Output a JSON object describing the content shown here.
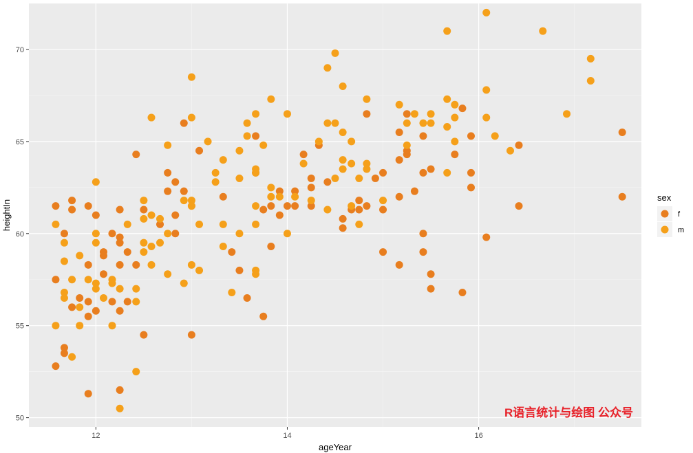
{
  "chart_data": {
    "type": "scatter",
    "xlabel": "ageYear",
    "ylabel": "heightIn",
    "xlim": [
      11.3,
      17.7
    ],
    "ylim": [
      49.5,
      72.5
    ],
    "x_ticks": [
      12,
      14,
      16
    ],
    "y_ticks": [
      50,
      55,
      60,
      65,
      70
    ],
    "grid": true,
    "legend": {
      "title": "sex",
      "placement": "right"
    },
    "series": [
      {
        "name": "f",
        "color": "#e87e1f",
        "points": [
          [
            11.58,
            61.5
          ],
          [
            11.58,
            57.5
          ],
          [
            11.58,
            52.8
          ],
          [
            11.67,
            60.0
          ],
          [
            11.67,
            53.8
          ],
          [
            11.67,
            53.5
          ],
          [
            11.75,
            61.8
          ],
          [
            11.75,
            61.3
          ],
          [
            11.75,
            56.0
          ],
          [
            11.83,
            56.5
          ],
          [
            11.92,
            61.5
          ],
          [
            11.92,
            58.3
          ],
          [
            11.92,
            56.3
          ],
          [
            11.92,
            55.5
          ],
          [
            11.92,
            51.3
          ],
          [
            12.0,
            61.0
          ],
          [
            12.0,
            55.8
          ],
          [
            12.08,
            59.0
          ],
          [
            12.08,
            58.8
          ],
          [
            12.08,
            57.8
          ],
          [
            12.17,
            60.0
          ],
          [
            12.17,
            56.3
          ],
          [
            12.25,
            61.3
          ],
          [
            12.25,
            59.8
          ],
          [
            12.25,
            59.5
          ],
          [
            12.25,
            58.3
          ],
          [
            12.25,
            55.8
          ],
          [
            12.25,
            51.5
          ],
          [
            12.33,
            59.0
          ],
          [
            12.33,
            56.3
          ],
          [
            12.42,
            64.3
          ],
          [
            12.42,
            58.3
          ],
          [
            12.5,
            61.3
          ],
          [
            12.5,
            54.5
          ],
          [
            12.67,
            60.5
          ],
          [
            12.75,
            63.3
          ],
          [
            12.75,
            62.3
          ],
          [
            12.83,
            62.8
          ],
          [
            12.83,
            61.0
          ],
          [
            12.83,
            60.0
          ],
          [
            12.92,
            66.0
          ],
          [
            12.92,
            62.3
          ],
          [
            13.0,
            61.5
          ],
          [
            13.0,
            54.5
          ],
          [
            13.08,
            64.5
          ],
          [
            13.33,
            62.0
          ],
          [
            13.42,
            59.0
          ],
          [
            13.5,
            58.0
          ],
          [
            13.58,
            56.5
          ],
          [
            13.67,
            65.3
          ],
          [
            13.67,
            63.3
          ],
          [
            13.75,
            61.3
          ],
          [
            13.75,
            55.5
          ],
          [
            13.83,
            61.5
          ],
          [
            13.83,
            59.3
          ],
          [
            13.92,
            62.3
          ],
          [
            13.92,
            61.0
          ],
          [
            14.0,
            61.5
          ],
          [
            14.08,
            62.3
          ],
          [
            14.08,
            61.5
          ],
          [
            14.17,
            64.3
          ],
          [
            14.25,
            63.0
          ],
          [
            14.25,
            62.5
          ],
          [
            14.25,
            61.5
          ],
          [
            14.33,
            64.8
          ],
          [
            14.42,
            62.8
          ],
          [
            14.58,
            60.8
          ],
          [
            14.58,
            60.3
          ],
          [
            14.67,
            61.3
          ],
          [
            14.75,
            61.8
          ],
          [
            14.75,
            61.3
          ],
          [
            14.83,
            66.5
          ],
          [
            14.83,
            61.5
          ],
          [
            14.92,
            63.0
          ],
          [
            15.0,
            63.3
          ],
          [
            15.0,
            61.3
          ],
          [
            15.0,
            59.0
          ],
          [
            15.17,
            65.5
          ],
          [
            15.17,
            64.0
          ],
          [
            15.17,
            62.0
          ],
          [
            15.17,
            58.3
          ],
          [
            15.25,
            66.5
          ],
          [
            15.25,
            64.5
          ],
          [
            15.25,
            64.3
          ],
          [
            15.33,
            62.3
          ],
          [
            15.42,
            65.3
          ],
          [
            15.42,
            63.3
          ],
          [
            15.42,
            60.0
          ],
          [
            15.42,
            59.0
          ],
          [
            15.5,
            63.5
          ],
          [
            15.5,
            57.8
          ],
          [
            15.5,
            57.0
          ],
          [
            15.75,
            64.3
          ],
          [
            15.83,
            66.8
          ],
          [
            15.83,
            56.8
          ],
          [
            15.92,
            65.3
          ],
          [
            15.92,
            63.3
          ],
          [
            15.92,
            62.5
          ],
          [
            16.08,
            59.8
          ],
          [
            16.42,
            64.8
          ],
          [
            16.42,
            61.5
          ],
          [
            17.5,
            65.5
          ],
          [
            17.5,
            62.0
          ]
        ]
      },
      {
        "name": "m",
        "color": "#f5a01a",
        "points": [
          [
            11.58,
            60.5
          ],
          [
            11.58,
            55.0
          ],
          [
            11.67,
            59.5
          ],
          [
            11.67,
            58.5
          ],
          [
            11.67,
            56.8
          ],
          [
            11.67,
            56.5
          ],
          [
            11.75,
            57.5
          ],
          [
            11.75,
            53.3
          ],
          [
            11.83,
            58.8
          ],
          [
            11.83,
            56.0
          ],
          [
            11.83,
            55.0
          ],
          [
            11.92,
            57.5
          ],
          [
            12.0,
            62.8
          ],
          [
            12.0,
            60.0
          ],
          [
            12.0,
            59.5
          ],
          [
            12.0,
            57.3
          ],
          [
            12.0,
            57.0
          ],
          [
            12.08,
            56.5
          ],
          [
            12.17,
            57.5
          ],
          [
            12.17,
            57.3
          ],
          [
            12.17,
            55.0
          ],
          [
            12.25,
            57.0
          ],
          [
            12.25,
            50.5
          ],
          [
            12.33,
            60.5
          ],
          [
            12.42,
            57.0
          ],
          [
            12.42,
            56.3
          ],
          [
            12.42,
            52.5
          ],
          [
            12.5,
            61.8
          ],
          [
            12.5,
            60.8
          ],
          [
            12.5,
            59.5
          ],
          [
            12.5,
            59.0
          ],
          [
            12.58,
            66.3
          ],
          [
            12.58,
            61.0
          ],
          [
            12.58,
            59.3
          ],
          [
            12.58,
            58.3
          ],
          [
            12.67,
            60.8
          ],
          [
            12.67,
            59.5
          ],
          [
            12.75,
            64.8
          ],
          [
            12.75,
            60.0
          ],
          [
            12.75,
            57.8
          ],
          [
            12.92,
            61.8
          ],
          [
            12.92,
            57.3
          ],
          [
            13.0,
            68.5
          ],
          [
            13.0,
            66.3
          ],
          [
            13.0,
            61.8
          ],
          [
            13.0,
            61.5
          ],
          [
            13.0,
            58.3
          ],
          [
            13.08,
            60.5
          ],
          [
            13.08,
            58.0
          ],
          [
            13.17,
            65.0
          ],
          [
            13.25,
            63.3
          ],
          [
            13.25,
            62.8
          ],
          [
            13.33,
            64.0
          ],
          [
            13.33,
            60.5
          ],
          [
            13.33,
            59.3
          ],
          [
            13.42,
            56.8
          ],
          [
            13.5,
            64.5
          ],
          [
            13.5,
            63.0
          ],
          [
            13.5,
            60.0
          ],
          [
            13.58,
            66.0
          ],
          [
            13.58,
            65.3
          ],
          [
            13.67,
            66.5
          ],
          [
            13.67,
            63.5
          ],
          [
            13.67,
            63.3
          ],
          [
            13.67,
            61.5
          ],
          [
            13.67,
            60.5
          ],
          [
            13.67,
            58.0
          ],
          [
            13.67,
            57.8
          ],
          [
            13.75,
            64.8
          ],
          [
            13.83,
            67.3
          ],
          [
            13.83,
            62.5
          ],
          [
            13.83,
            62.0
          ],
          [
            13.92,
            62.0
          ],
          [
            14.0,
            66.5
          ],
          [
            14.0,
            60.0
          ],
          [
            14.08,
            62.0
          ],
          [
            14.17,
            63.8
          ],
          [
            14.25,
            61.8
          ],
          [
            14.33,
            65.0
          ],
          [
            14.42,
            69.0
          ],
          [
            14.42,
            66.0
          ],
          [
            14.42,
            61.3
          ],
          [
            14.5,
            69.8
          ],
          [
            14.5,
            66.0
          ],
          [
            14.5,
            63.0
          ],
          [
            14.58,
            68.0
          ],
          [
            14.58,
            65.5
          ],
          [
            14.58,
            64.0
          ],
          [
            14.58,
            63.5
          ],
          [
            14.67,
            65.0
          ],
          [
            14.67,
            63.8
          ],
          [
            14.67,
            61.5
          ],
          [
            14.75,
            63.0
          ],
          [
            14.75,
            60.5
          ],
          [
            14.83,
            67.3
          ],
          [
            14.83,
            63.8
          ],
          [
            14.83,
            63.5
          ],
          [
            15.0,
            61.8
          ],
          [
            15.17,
            67.0
          ],
          [
            15.25,
            66.0
          ],
          [
            15.25,
            64.8
          ],
          [
            15.33,
            66.5
          ],
          [
            15.42,
            66.0
          ],
          [
            15.5,
            66.5
          ],
          [
            15.5,
            66.0
          ],
          [
            15.67,
            71.0
          ],
          [
            15.67,
            67.3
          ],
          [
            15.67,
            65.8
          ],
          [
            15.67,
            63.3
          ],
          [
            15.75,
            67.0
          ],
          [
            15.75,
            66.3
          ],
          [
            15.75,
            65.0
          ],
          [
            16.08,
            72.0
          ],
          [
            16.08,
            67.8
          ],
          [
            16.08,
            66.3
          ],
          [
            16.17,
            65.3
          ],
          [
            16.33,
            64.5
          ],
          [
            16.67,
            71.0
          ],
          [
            16.92,
            66.5
          ],
          [
            17.17,
            69.5
          ],
          [
            17.17,
            68.3
          ]
        ]
      }
    ]
  },
  "watermark": "R语言统计与绘图 公众号"
}
